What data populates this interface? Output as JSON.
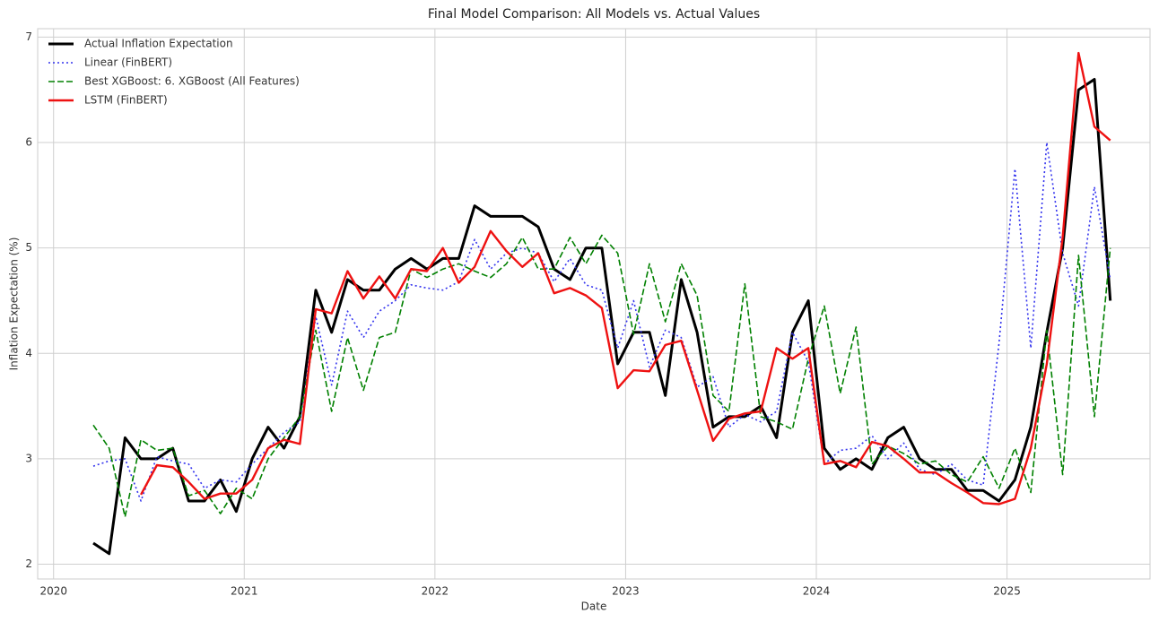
{
  "chart_data": {
    "type": "line",
    "title": "Final Model Comparison: All Models vs. Actual Values",
    "xlabel": "Date",
    "ylabel": "Inflation Expectation (%)",
    "x": [
      "2020-03",
      "2020-04",
      "2020-05",
      "2020-06",
      "2020-07",
      "2020-08",
      "2020-09",
      "2020-10",
      "2020-11",
      "2020-12",
      "2021-01",
      "2021-02",
      "2021-03",
      "2021-04",
      "2021-05",
      "2021-06",
      "2021-07",
      "2021-08",
      "2021-09",
      "2021-10",
      "2021-11",
      "2021-12",
      "2022-01",
      "2022-02",
      "2022-03",
      "2022-04",
      "2022-05",
      "2022-06",
      "2022-07",
      "2022-08",
      "2022-09",
      "2022-10",
      "2022-11",
      "2022-12",
      "2023-01",
      "2023-02",
      "2023-03",
      "2023-04",
      "2023-05",
      "2023-06",
      "2023-07",
      "2023-08",
      "2023-09",
      "2023-10",
      "2023-11",
      "2023-12",
      "2024-01",
      "2024-02",
      "2024-03",
      "2024-04",
      "2024-05",
      "2024-06",
      "2024-07",
      "2024-08",
      "2024-09",
      "2024-10",
      "2024-11",
      "2024-12",
      "2025-01",
      "2025-02",
      "2025-03",
      "2025-04",
      "2025-05",
      "2025-06",
      "2025-07"
    ],
    "series": [
      {
        "name": "Actual Inflation Expectation",
        "color": "#000000",
        "linestyle": "solid",
        "values": [
          2.2,
          2.1,
          3.2,
          3.0,
          3.0,
          3.1,
          2.6,
          2.6,
          2.8,
          2.5,
          3.0,
          3.3,
          3.1,
          3.4,
          4.6,
          4.2,
          4.7,
          4.6,
          4.6,
          4.8,
          4.9,
          4.8,
          4.9,
          4.9,
          5.4,
          5.3,
          5.3,
          5.3,
          5.2,
          4.8,
          4.7,
          5.0,
          5.0,
          3.9,
          4.2,
          4.2,
          3.6,
          4.7,
          4.2,
          3.3,
          3.4,
          3.4,
          3.5,
          3.2,
          4.2,
          4.5,
          3.1,
          2.9,
          3.0,
          2.9,
          3.2,
          3.3,
          3.0,
          2.9,
          2.9,
          2.7,
          2.7,
          2.6,
          2.8,
          3.3,
          4.2,
          5.0,
          6.5,
          6.6,
          4.5
        ]
      },
      {
        "name": "Linear (FinBERT)",
        "color": "#3333ee",
        "linestyle": "dotted",
        "values": [
          2.93,
          2.98,
          3.0,
          2.6,
          3.02,
          2.98,
          2.95,
          2.72,
          2.8,
          2.78,
          2.95,
          3.1,
          3.25,
          3.35,
          4.35,
          3.7,
          4.4,
          4.15,
          4.4,
          4.5,
          4.65,
          4.62,
          4.6,
          4.68,
          5.08,
          4.8,
          4.95,
          5.0,
          4.95,
          4.68,
          4.9,
          4.65,
          4.6,
          4.05,
          4.5,
          3.87,
          4.22,
          4.15,
          3.68,
          3.78,
          3.3,
          3.42,
          3.35,
          3.45,
          4.2,
          3.92,
          2.95,
          3.08,
          3.1,
          3.22,
          3.0,
          3.15,
          2.9,
          2.85,
          2.95,
          2.8,
          2.75,
          4.1,
          5.75,
          4.05,
          6.0,
          4.95,
          4.45,
          5.58,
          4.7
        ]
      },
      {
        "name": "Best XGBoost: 6. XGBoost (All Features)",
        "color": "#008000",
        "linestyle": "dashed",
        "values": [
          3.32,
          3.1,
          2.45,
          3.18,
          3.08,
          3.1,
          2.65,
          2.7,
          2.48,
          2.72,
          2.62,
          3.0,
          3.2,
          3.4,
          4.22,
          3.45,
          4.15,
          3.65,
          4.15,
          4.2,
          4.8,
          4.72,
          4.8,
          4.85,
          4.78,
          4.72,
          4.85,
          5.1,
          4.8,
          4.8,
          5.1,
          4.85,
          5.12,
          4.95,
          4.18,
          4.85,
          4.3,
          4.85,
          4.55,
          3.6,
          3.45,
          4.66,
          3.4,
          3.35,
          3.28,
          3.95,
          4.45,
          3.62,
          4.25,
          2.95,
          3.12,
          3.05,
          2.95,
          2.98,
          2.85,
          2.78,
          3.02,
          2.72,
          3.1,
          2.68,
          4.22,
          2.85,
          4.93,
          3.4,
          5.0
        ]
      },
      {
        "name": "LSTM (FinBERT)",
        "color": "#ee1111",
        "linestyle": "solid",
        "values": [
          null,
          null,
          null,
          2.66,
          2.94,
          2.92,
          2.78,
          2.62,
          2.67,
          2.67,
          2.8,
          3.1,
          3.18,
          3.14,
          4.42,
          4.38,
          4.78,
          4.52,
          4.73,
          4.52,
          4.8,
          4.78,
          5.0,
          4.67,
          4.82,
          5.16,
          4.97,
          4.82,
          4.95,
          4.57,
          4.62,
          4.55,
          4.43,
          3.67,
          3.84,
          3.83,
          4.08,
          4.12,
          3.65,
          3.17,
          3.38,
          3.43,
          3.45,
          4.05,
          3.95,
          4.05,
          2.95,
          2.98,
          2.92,
          3.16,
          3.12,
          3.0,
          2.87,
          2.87,
          2.77,
          2.68,
          2.58,
          2.57,
          2.62,
          3.1,
          3.9,
          5.1,
          6.85,
          6.15,
          6.02
        ]
      }
    ],
    "xlim": [
      "2019-12",
      "2025-10"
    ],
    "xticks": [
      {
        "value": "2020-01",
        "label": "2020"
      },
      {
        "value": "2021-01",
        "label": "2021"
      },
      {
        "value": "2022-01",
        "label": "2022"
      },
      {
        "value": "2023-01",
        "label": "2023"
      },
      {
        "value": "2024-01",
        "label": "2024"
      },
      {
        "value": "2025-01",
        "label": "2025"
      }
    ],
    "ylim": [
      1.86,
      7.08
    ],
    "yticks": [
      2,
      3,
      4,
      5,
      6,
      7
    ],
    "grid": true,
    "legend": "upper left"
  }
}
